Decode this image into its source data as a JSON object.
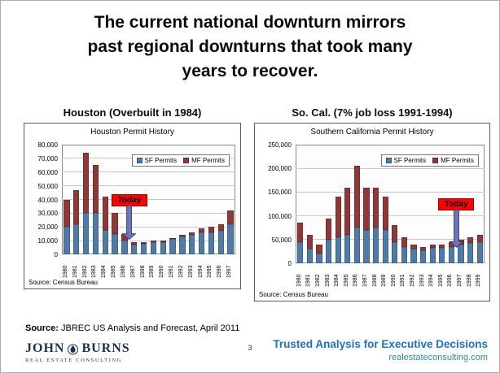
{
  "slide": {
    "title_lines": [
      "The current national downturn mirrors",
      "past regional downturns that took many",
      "years to recover."
    ],
    "page_number": "3",
    "footer": {
      "source_label": "Source:",
      "source_text": " JBREC US Analysis and Forecast, April 2011"
    },
    "logo": {
      "name_left": "JOHN",
      "name_right": "BURNS",
      "subtitle": "REAL ESTATE CONSULTING"
    },
    "branding": {
      "tagline": "Trusted Analysis for Executive Decisions",
      "website": "realestateconsulting.com",
      "tagline_color": "#1f72b8",
      "website_color": "#2e8b9a"
    }
  },
  "chart_data": [
    {
      "type": "bar",
      "stacked": true,
      "heading": "Houston (Overbuilt in 1984)",
      "title": "Houston Permit History",
      "categories": [
        "1980",
        "1981",
        "1982",
        "1983",
        "1984",
        "1985",
        "1986",
        "1987",
        "1988",
        "1989",
        "1990",
        "1991",
        "1992",
        "1993",
        "1994",
        "1995",
        "1996",
        "1997"
      ],
      "series": [
        {
          "name": "SF Permits",
          "color": "#4f7aa6",
          "values": [
            20000,
            22000,
            30000,
            30000,
            18000,
            15000,
            10000,
            7000,
            8000,
            9000,
            9000,
            11000,
            13000,
            14000,
            16000,
            16000,
            17000,
            22000
          ]
        },
        {
          "name": "MF Permits",
          "color": "#8e3837",
          "values": [
            20000,
            25000,
            44000,
            35000,
            24000,
            15000,
            5000,
            2000,
            1000,
            1000,
            1000,
            1000,
            1000,
            2000,
            3000,
            4000,
            5000,
            10000
          ]
        }
      ],
      "ylim": [
        0,
        80000
      ],
      "ytick_step": 10000,
      "grid": true,
      "legend_position": "top-right",
      "source_note": "Source: Census Bureau",
      "annotation": {
        "label": "Today",
        "index": 6.5,
        "color": "#fe0000"
      }
    },
    {
      "type": "bar",
      "stacked": true,
      "heading": "So. Cal. (7% job loss 1991-1994)",
      "title": "Southern California Permit History",
      "categories": [
        "1980",
        "1981",
        "1982",
        "1983",
        "1984",
        "1985",
        "1986",
        "1987",
        "1988",
        "1989",
        "1990",
        "1991",
        "1992",
        "1993",
        "1994",
        "1995",
        "1996",
        "1997",
        "1998",
        "1999"
      ],
      "series": [
        {
          "name": "SF Permits",
          "color": "#4f7aa6",
          "values": [
            45000,
            30000,
            20000,
            50000,
            55000,
            60000,
            75000,
            70000,
            75000,
            70000,
            45000,
            35000,
            30000,
            28000,
            32000,
            32000,
            35000,
            40000,
            43000,
            45000
          ]
        },
        {
          "name": "MF Permits",
          "color": "#8e3837",
          "values": [
            40000,
            30000,
            20000,
            45000,
            85000,
            100000,
            130000,
            90000,
            85000,
            70000,
            35000,
            20000,
            10000,
            7000,
            8000,
            8000,
            10000,
            10000,
            12000,
            15000
          ]
        }
      ],
      "ylim": [
        0,
        250000
      ],
      "ytick_step": 50000,
      "grid": true,
      "legend_position": "top-right",
      "source_note": "Source: Census Bureau",
      "annotation": {
        "label": "Today",
        "index": 16.5,
        "color": "#fe0000"
      }
    }
  ]
}
